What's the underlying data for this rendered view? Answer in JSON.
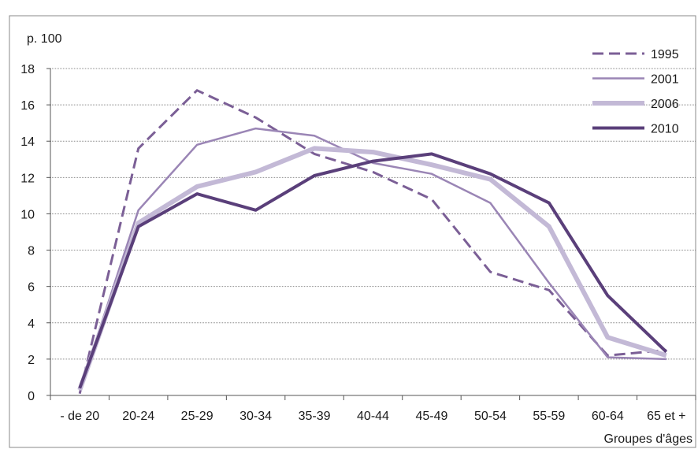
{
  "chart_data": {
    "type": "line",
    "title": "",
    "ylabel": "p. 100",
    "xlabel": "Groupes d'âges",
    "categories": [
      "- de 20",
      "20-24",
      "25-29",
      "30-34",
      "35-39",
      "40-44",
      "45-49",
      "50-54",
      "55-59",
      "60-64",
      "65 et +"
    ],
    "ylim": [
      0,
      18
    ],
    "yticks": [
      0,
      2,
      4,
      6,
      8,
      10,
      12,
      14,
      16,
      18
    ],
    "grid": true,
    "legend_position": "top-right",
    "series": [
      {
        "name": "1995",
        "color": "#7b5f96",
        "style": "dashed",
        "width": 3,
        "values": [
          0.1,
          13.6,
          16.8,
          15.3,
          13.3,
          12.3,
          10.8,
          6.8,
          5.8,
          2.2,
          2.5
        ]
      },
      {
        "name": "2001",
        "color": "#9a85b5",
        "style": "solid",
        "width": 2.5,
        "values": [
          0.3,
          10.2,
          13.8,
          14.7,
          14.3,
          12.8,
          12.2,
          10.6,
          6.2,
          2.1,
          2.0
        ]
      },
      {
        "name": "2006",
        "color": "#c3b9d6",
        "style": "solid",
        "width": 6,
        "values": [
          0.3,
          9.5,
          11.5,
          12.3,
          13.6,
          13.4,
          12.7,
          11.9,
          9.3,
          3.2,
          2.2
        ]
      },
      {
        "name": "2010",
        "color": "#5a3f7a",
        "style": "solid",
        "width": 4,
        "values": [
          0.4,
          9.3,
          11.1,
          10.2,
          12.1,
          12.9,
          13.3,
          12.2,
          10.6,
          5.5,
          2.4
        ]
      }
    ]
  }
}
